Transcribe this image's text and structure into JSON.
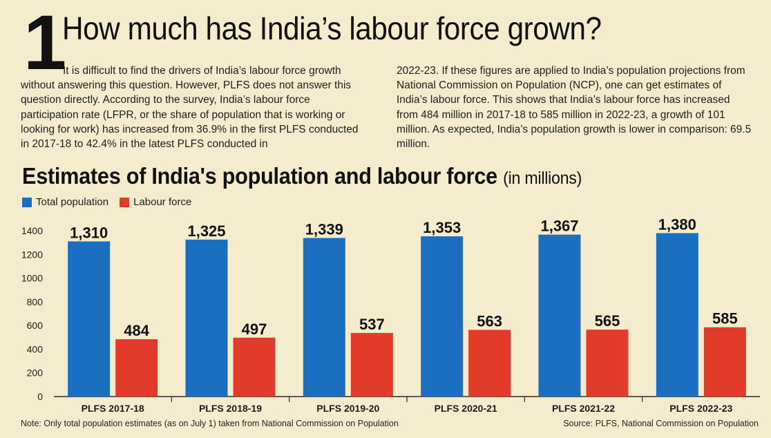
{
  "header": {
    "number": "1",
    "title": "How much has India’s labour force grown?"
  },
  "intro": {
    "left_first": "It is difficult to find the drivers of India’s labour force growth without answering this question. However, PLFS does not answer this question directly. According to the survey, India’s labour force participation rate (LFPR, or the share of population that is working or looking for work) has increased from 36.9% in the first PLFS conducted in 2017-18 to 42.4% in the latest PLFS conducted in",
    "right": "2022-23. If these figures are applied to India’s population projections from National Commission on Population (NCP), one can get estimates of India’s labour force. This shows that India’s labour force has increased from 484 million in 2017-18 to 585 million in 2022-23, a growth of 101 million. As expected, India’s population growth is lower in comparison: 69.5 million."
  },
  "chart_data": {
    "type": "bar",
    "title": "Estimates of India's population and labour force",
    "title_unit": "(in millions)",
    "categories": [
      "PLFS 2017-18",
      "PLFS 2018-19",
      "PLFS 2019-20",
      "PLFS 2020-21",
      "PLFS 2021-22",
      "PLFS 2022-23"
    ],
    "series": [
      {
        "name": "Total population",
        "color": "#1b6fc0",
        "values": [
          1310,
          1325,
          1339,
          1353,
          1367,
          1380
        ],
        "labels": [
          "1,310",
          "1,325",
          "1,339",
          "1,353",
          "1,367",
          "1,380"
        ]
      },
      {
        "name": "Labour force",
        "color": "#e23b2a",
        "values": [
          484,
          497,
          537,
          563,
          565,
          585
        ],
        "labels": [
          "484",
          "497",
          "537",
          "563",
          "565",
          "585"
        ]
      }
    ],
    "yticks": [
      0,
      200,
      400,
      600,
      800,
      1000,
      1200,
      1400
    ],
    "ylim": [
      0,
      1400
    ],
    "grid": false,
    "legend": "top-left",
    "xlabel": "",
    "ylabel": ""
  },
  "footer": {
    "note": "Note: Only total population estimates (as on July 1) taken from National Commission on Population",
    "source": "Source: PLFS, National Commission on Population"
  }
}
